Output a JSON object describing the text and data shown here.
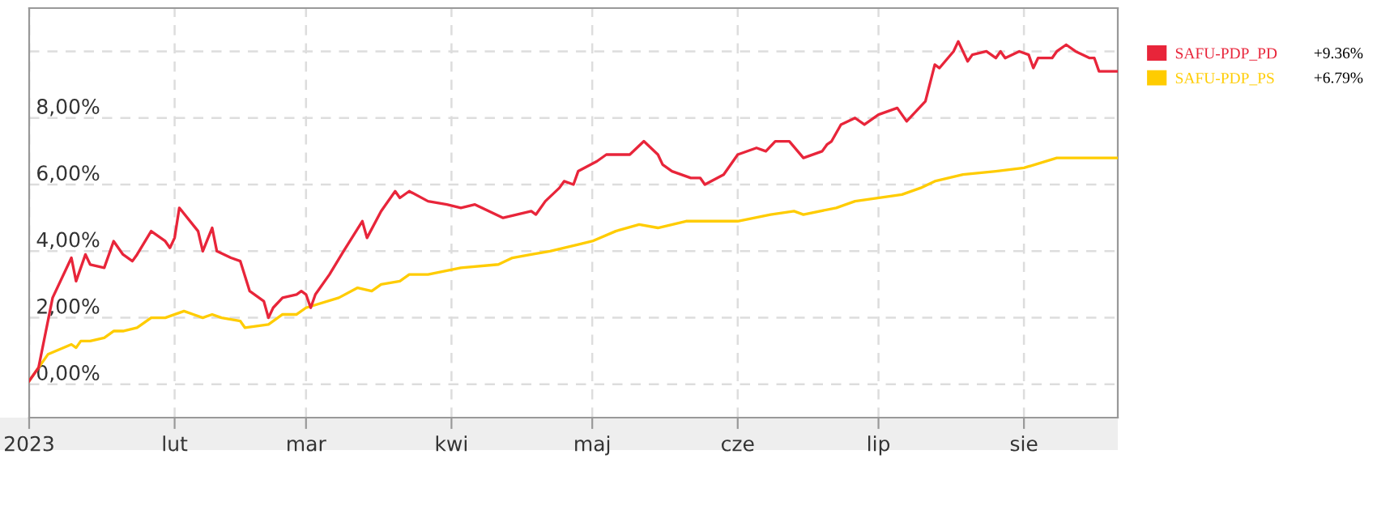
{
  "chart_data": {
    "type": "line",
    "xlim": [
      "2023-01-01",
      "2023-08-21"
    ],
    "xticks": [
      {
        "value": "2023-01-01",
        "label": "2023"
      },
      {
        "value": "2023-02-01",
        "label": "lut"
      },
      {
        "value": "2023-03-01",
        "label": "mar"
      },
      {
        "value": "2023-04-01",
        "label": "kwi"
      },
      {
        "value": "2023-05-01",
        "label": "maj"
      },
      {
        "value": "2023-06-01",
        "label": "cze"
      },
      {
        "value": "2023-07-01",
        "label": "lip"
      },
      {
        "value": "2023-08-01",
        "label": "sie"
      }
    ],
    "ylim": [
      -1.0,
      11.3
    ],
    "yticks": [
      {
        "value": 0,
        "label": "0,00%"
      },
      {
        "value": 2,
        "label": "2,00%"
      },
      {
        "value": 4,
        "label": "4,00%"
      },
      {
        "value": 6,
        "label": "6,00%"
      },
      {
        "value": 8,
        "label": "8,00%"
      },
      {
        "value": 10,
        "label": null
      }
    ],
    "grid": true,
    "legend": "right",
    "marker": "none",
    "line_style": "solid",
    "annotations": [
      "+9.36%",
      "+6.79%"
    ],
    "series": [
      {
        "name": "SAFU-PDP_PD",
        "color": "#e8253a",
        "x": [
          "2023-01-01",
          "2023-01-03",
          "2023-01-06",
          "2023-01-10",
          "2023-01-11",
          "2023-01-13",
          "2023-01-14",
          "2023-01-17",
          "2023-01-19",
          "2023-01-21",
          "2023-01-23",
          "2023-01-24",
          "2023-01-27",
          "2023-01-30",
          "2023-01-31",
          "2023-02-01",
          "2023-02-02",
          "2023-02-06",
          "2023-02-07",
          "2023-02-09",
          "2023-02-10",
          "2023-02-13",
          "2023-02-15",
          "2023-02-17",
          "2023-02-20",
          "2023-02-21",
          "2023-02-22",
          "2023-02-24",
          "2023-02-27",
          "2023-02-28",
          "2023-03-01",
          "2023-03-02",
          "2023-03-03",
          "2023-03-06",
          "2023-03-09",
          "2023-03-13",
          "2023-03-14",
          "2023-03-17",
          "2023-03-20",
          "2023-03-21",
          "2023-03-23",
          "2023-03-27",
          "2023-03-31",
          "2023-04-03",
          "2023-04-06",
          "2023-04-12",
          "2023-04-18",
          "2023-04-19",
          "2023-04-21",
          "2023-04-24",
          "2023-04-25",
          "2023-04-27",
          "2023-04-28",
          "2023-05-02",
          "2023-05-04",
          "2023-05-09",
          "2023-05-12",
          "2023-05-15",
          "2023-05-16",
          "2023-05-18",
          "2023-05-22",
          "2023-05-24",
          "2023-05-25",
          "2023-05-29",
          "2023-06-01",
          "2023-06-05",
          "2023-06-07",
          "2023-06-09",
          "2023-06-12",
          "2023-06-15",
          "2023-06-19",
          "2023-06-20",
          "2023-06-21",
          "2023-06-23",
          "2023-06-26",
          "2023-06-28",
          "2023-07-01",
          "2023-07-05",
          "2023-07-07",
          "2023-07-11",
          "2023-07-13",
          "2023-07-14",
          "2023-07-17",
          "2023-07-18",
          "2023-07-20",
          "2023-07-21",
          "2023-07-24",
          "2023-07-26",
          "2023-07-27",
          "2023-07-28",
          "2023-07-31",
          "2023-08-02",
          "2023-08-03",
          "2023-08-04",
          "2023-08-07",
          "2023-08-08",
          "2023-08-10",
          "2023-08-12",
          "2023-08-15",
          "2023-08-16",
          "2023-08-17",
          "2023-08-21"
        ],
        "values": [
          0.1,
          0.5,
          2.6,
          3.8,
          3.1,
          3.9,
          3.6,
          3.5,
          4.3,
          3.9,
          3.7,
          3.9,
          4.6,
          4.3,
          4.1,
          4.4,
          5.3,
          4.6,
          4.0,
          4.7,
          4.0,
          3.8,
          3.7,
          2.8,
          2.5,
          2.0,
          2.3,
          2.6,
          2.7,
          2.8,
          2.7,
          2.3,
          2.7,
          3.3,
          4.0,
          4.9,
          4.4,
          5.2,
          5.8,
          5.6,
          5.8,
          5.5,
          5.4,
          5.3,
          5.4,
          5.0,
          5.2,
          5.1,
          5.5,
          5.9,
          6.1,
          6.0,
          6.4,
          6.7,
          6.9,
          6.9,
          7.3,
          6.9,
          6.6,
          6.4,
          6.2,
          6.2,
          6.0,
          6.3,
          6.9,
          7.1,
          7.0,
          7.3,
          7.3,
          6.8,
          7.0,
          7.2,
          7.3,
          7.8,
          8.0,
          7.8,
          8.1,
          8.3,
          7.9,
          8.5,
          9.6,
          9.5,
          10.0,
          10.3,
          9.7,
          9.9,
          10.0,
          9.8,
          10.0,
          9.8,
          10.0,
          9.9,
          9.5,
          9.8,
          9.8,
          10.0,
          10.2,
          10.0,
          9.8,
          9.8,
          9.4,
          9.4
        ]
      },
      {
        "name": "SAFU-PDP_PS",
        "color": "#ffcc00",
        "x": [
          "2023-01-01",
          "2023-01-05",
          "2023-01-10",
          "2023-01-11",
          "2023-01-12",
          "2023-01-14",
          "2023-01-17",
          "2023-01-19",
          "2023-01-21",
          "2023-01-24",
          "2023-01-27",
          "2023-01-30",
          "2023-02-03",
          "2023-02-05",
          "2023-02-07",
          "2023-02-09",
          "2023-02-11",
          "2023-02-15",
          "2023-02-16",
          "2023-02-21",
          "2023-02-24",
          "2023-02-27",
          "2023-03-01",
          "2023-03-08",
          "2023-03-12",
          "2023-03-15",
          "2023-03-17",
          "2023-03-21",
          "2023-03-23",
          "2023-03-27",
          "2023-04-03",
          "2023-04-11",
          "2023-04-14",
          "2023-04-18",
          "2023-04-22",
          "2023-04-28",
          "2023-05-01",
          "2023-05-06",
          "2023-05-11",
          "2023-05-15",
          "2023-05-21",
          "2023-06-01",
          "2023-06-08",
          "2023-06-13",
          "2023-06-15",
          "2023-06-22",
          "2023-06-26",
          "2023-07-06",
          "2023-07-10",
          "2023-07-13",
          "2023-07-19",
          "2023-07-26",
          "2023-08-01",
          "2023-08-08",
          "2023-08-16",
          "2023-08-21"
        ],
        "values": [
          0.1,
          0.9,
          1.2,
          1.1,
          1.3,
          1.3,
          1.4,
          1.6,
          1.6,
          1.7,
          2.0,
          2.0,
          2.2,
          2.1,
          2.0,
          2.1,
          2.0,
          1.9,
          1.7,
          1.8,
          2.1,
          2.1,
          2.3,
          2.6,
          2.9,
          2.8,
          3.0,
          3.1,
          3.3,
          3.3,
          3.5,
          3.6,
          3.8,
          3.9,
          4.0,
          4.2,
          4.3,
          4.6,
          4.8,
          4.7,
          4.9,
          4.9,
          5.1,
          5.2,
          5.1,
          5.3,
          5.5,
          5.7,
          5.9,
          6.1,
          6.3,
          6.4,
          6.5,
          6.8,
          6.8,
          6.8
        ]
      }
    ]
  }
}
